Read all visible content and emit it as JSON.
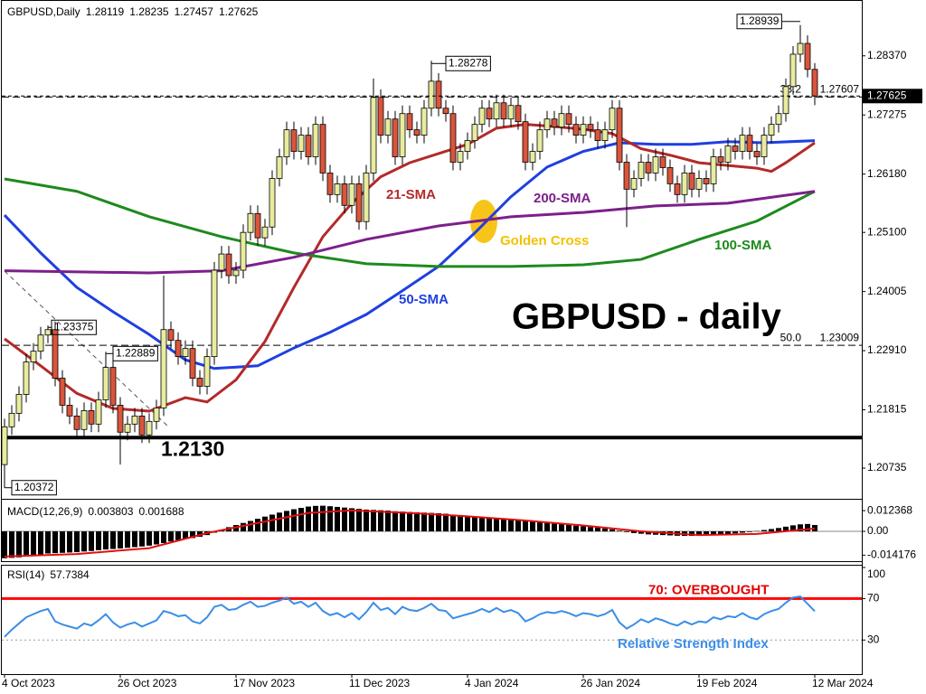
{
  "chart_data": [
    {
      "type": "candlestick",
      "symbol": "GBPUSD,Daily",
      "title": "GBPUSD - daily",
      "categories": [
        "4 Oct 2023",
        null,
        null,
        null,
        null,
        null,
        null,
        null,
        null,
        null,
        null,
        null,
        null,
        null,
        null,
        null,
        "26 Oct 2023",
        null,
        null,
        null,
        null,
        null,
        null,
        null,
        null,
        null,
        null,
        null,
        null,
        null,
        null,
        null,
        "17 Nov 2023",
        null,
        null,
        null,
        null,
        null,
        null,
        null,
        null,
        null,
        null,
        null,
        null,
        null,
        null,
        null,
        "11 Dec 2023",
        null,
        null,
        null,
        null,
        null,
        null,
        null,
        null,
        null,
        null,
        null,
        null,
        null,
        null,
        null,
        "4 Jan 2024",
        null,
        null,
        null,
        null,
        null,
        null,
        null,
        null,
        null,
        null,
        null,
        null,
        null,
        null,
        null,
        "26 Jan 2024",
        null,
        null,
        null,
        null,
        null,
        null,
        null,
        null,
        null,
        null,
        null,
        null,
        null,
        null,
        null,
        "19 Feb 2024",
        null,
        null,
        null,
        null,
        null,
        null,
        null,
        null,
        null,
        null,
        null,
        null,
        null,
        null,
        null,
        "12 Mar 2024"
      ],
      "open": [
        1.208,
        1.215,
        1.2175,
        1.221,
        1.227,
        1.229,
        1.232,
        1.233,
        1.224,
        1.219,
        1.217,
        1.2145,
        1.218,
        1.2155,
        1.22,
        1.226,
        1.219,
        1.214,
        1.2155,
        1.217,
        1.2135,
        1.216,
        1.2185,
        1.233,
        1.231,
        1.228,
        1.2295,
        1.224,
        1.2225,
        1.228,
        1.244,
        1.247,
        1.243,
        1.244,
        1.251,
        1.2545,
        1.25,
        1.252,
        1.261,
        1.265,
        1.27,
        1.266,
        1.269,
        1.265,
        1.271,
        1.262,
        1.258,
        1.26,
        1.256,
        1.26,
        1.253,
        1.262,
        1.276,
        1.269,
        1.272,
        1.265,
        1.273,
        1.27,
        1.269,
        1.274,
        1.279,
        1.274,
        1.273,
        1.264,
        1.266,
        1.268,
        1.271,
        1.274,
        1.272,
        1.275,
        1.272,
        1.2745,
        1.2715,
        1.264,
        1.266,
        1.27,
        1.272,
        1.2705,
        1.273,
        1.271,
        1.269,
        1.271,
        1.27,
        1.268,
        1.27,
        1.274,
        1.264,
        1.259,
        1.261,
        1.264,
        1.262,
        1.265,
        1.263,
        1.26,
        1.258,
        1.262,
        1.259,
        1.261,
        1.26,
        1.265,
        1.264,
        1.267,
        1.266,
        1.269,
        1.266,
        1.265,
        1.269,
        1.271,
        1.273,
        1.278,
        1.284,
        1.286,
        1.28119
      ],
      "high": [
        1.2165,
        1.219,
        1.2225,
        1.2285,
        1.2305,
        1.2335,
        1.23375,
        1.2345,
        1.2255,
        1.2205,
        1.2185,
        1.2195,
        1.2195,
        1.2215,
        1.22889,
        1.2275,
        1.2205,
        1.217,
        1.2185,
        1.2185,
        1.2175,
        1.22,
        1.243,
        1.2345,
        1.2325,
        1.231,
        1.231,
        1.2255,
        1.2295,
        1.2455,
        1.2485,
        1.2485,
        1.2455,
        1.2525,
        1.256,
        1.256,
        1.2535,
        1.2625,
        1.2665,
        1.2715,
        1.2715,
        1.2705,
        1.2705,
        1.2725,
        1.2725,
        1.2635,
        1.2615,
        1.2615,
        1.2615,
        1.2615,
        1.2635,
        1.2795,
        1.2775,
        1.2735,
        1.2735,
        1.2745,
        1.2745,
        1.2715,
        1.2755,
        1.28278,
        1.2805,
        1.2755,
        1.2745,
        1.2675,
        1.2695,
        1.2725,
        1.2755,
        1.2755,
        1.2765,
        1.2765,
        1.276,
        1.276,
        1.273,
        1.2675,
        1.2715,
        1.2735,
        1.2735,
        1.2745,
        1.2745,
        1.2725,
        1.2725,
        1.2725,
        1.2715,
        1.2715,
        1.2755,
        1.2755,
        1.2655,
        1.2625,
        1.2655,
        1.2655,
        1.2665,
        1.2665,
        1.2645,
        1.2615,
        1.2635,
        1.2635,
        1.2625,
        1.2625,
        1.2665,
        1.2665,
        1.2685,
        1.2685,
        1.2705,
        1.2705,
        1.2675,
        1.2705,
        1.2725,
        1.2745,
        1.2795,
        1.2855,
        1.28939,
        1.2875,
        1.28235
      ],
      "low": [
        1.20372,
        1.2135,
        1.216,
        1.2195,
        1.2255,
        1.2275,
        1.2305,
        1.2225,
        1.2175,
        1.2155,
        1.213,
        1.213,
        1.214,
        1.214,
        1.2185,
        1.2175,
        1.208,
        1.2125,
        1.214,
        1.212,
        1.212,
        1.2145,
        1.217,
        1.2295,
        1.2265,
        1.2265,
        1.2225,
        1.221,
        1.221,
        1.2265,
        1.2425,
        1.2415,
        1.2415,
        1.2425,
        1.2495,
        1.2485,
        1.2485,
        1.2505,
        1.2595,
        1.2635,
        1.2645,
        1.2645,
        1.2635,
        1.2635,
        1.2605,
        1.2565,
        1.2565,
        1.2545,
        1.2545,
        1.2515,
        1.2515,
        1.2605,
        1.2675,
        1.2675,
        1.2635,
        1.2635,
        1.2685,
        1.2675,
        1.2675,
        1.2725,
        1.2725,
        1.2715,
        1.2625,
        1.2625,
        1.2645,
        1.2665,
        1.2695,
        1.2705,
        1.2705,
        1.2705,
        1.2705,
        1.27,
        1.2625,
        1.2625,
        1.2645,
        1.2685,
        1.269,
        1.269,
        1.2695,
        1.2675,
        1.2675,
        1.2685,
        1.2665,
        1.2665,
        1.2685,
        1.2625,
        1.252,
        1.2575,
        1.2595,
        1.2605,
        1.2605,
        1.2615,
        1.2585,
        1.2565,
        1.2565,
        1.2575,
        1.2575,
        1.2585,
        1.2585,
        1.2625,
        1.2625,
        1.2645,
        1.2645,
        1.2645,
        1.2635,
        1.2635,
        1.2675,
        1.2695,
        1.2715,
        1.2765,
        1.2825,
        1.2797,
        1.27457
      ],
      "close": [
        1.215,
        1.2175,
        1.221,
        1.227,
        1.229,
        1.232,
        1.233,
        1.224,
        1.219,
        1.217,
        1.2145,
        1.218,
        1.2155,
        1.22,
        1.226,
        1.219,
        1.214,
        1.2155,
        1.217,
        1.2135,
        1.216,
        1.2185,
        1.233,
        1.231,
        1.228,
        1.2295,
        1.224,
        1.2225,
        1.228,
        1.244,
        1.247,
        1.243,
        1.244,
        1.251,
        1.2545,
        1.25,
        1.252,
        1.261,
        1.265,
        1.27,
        1.266,
        1.269,
        1.265,
        1.271,
        1.262,
        1.258,
        1.26,
        1.256,
        1.26,
        1.253,
        1.262,
        1.276,
        1.269,
        1.272,
        1.265,
        1.273,
        1.27,
        1.269,
        1.274,
        1.279,
        1.274,
        1.273,
        1.264,
        1.266,
        1.268,
        1.271,
        1.274,
        1.272,
        1.275,
        1.272,
        1.2745,
        1.2715,
        1.264,
        1.266,
        1.27,
        1.272,
        1.2705,
        1.273,
        1.271,
        1.269,
        1.271,
        1.27,
        1.268,
        1.27,
        1.274,
        1.264,
        1.259,
        1.261,
        1.264,
        1.262,
        1.265,
        1.263,
        1.26,
        1.258,
        1.262,
        1.259,
        1.261,
        1.26,
        1.265,
        1.264,
        1.267,
        1.266,
        1.269,
        1.266,
        1.265,
        1.269,
        1.271,
        1.273,
        1.278,
        1.284,
        1.286,
        1.28119,
        1.27625
      ],
      "up_color": "#e8ec9e",
      "down_color": "#d9553b",
      "series": [
        {
          "name": "50-SMA",
          "color": "#1f3fe0",
          "x": [
            0,
            5,
            10,
            15,
            20,
            25,
            29,
            35,
            40,
            45,
            50,
            55,
            60,
            65,
            70,
            75,
            80,
            85,
            90,
            95,
            100,
            105,
            112
          ],
          "values": [
            1.2542,
            1.2472,
            1.2408,
            1.2363,
            1.2321,
            1.2274,
            1.2258,
            1.2263,
            1.2296,
            1.2325,
            1.2358,
            1.2402,
            1.2447,
            1.2509,
            1.2576,
            1.2631,
            1.266,
            1.2676,
            1.2673,
            1.2673,
            1.2678,
            1.2676,
            1.268
          ]
        },
        {
          "name": "21-SMA",
          "color": "#b32a2a",
          "x": [
            0,
            5,
            10,
            15,
            20,
            25,
            28,
            32,
            36,
            40,
            44,
            48,
            52,
            56,
            60,
            64,
            68,
            72,
            76,
            80,
            84,
            88,
            92,
            96,
            100,
            104,
            106,
            108,
            112
          ],
          "values": [
            1.2313,
            1.2263,
            1.2212,
            1.2184,
            1.2179,
            1.2204,
            1.2196,
            1.2237,
            1.2308,
            1.2408,
            1.2502,
            1.2564,
            1.2613,
            1.2639,
            1.2656,
            1.2673,
            1.2703,
            1.271,
            1.2706,
            1.2701,
            1.2693,
            1.2665,
            1.2653,
            1.2639,
            1.2634,
            1.2629,
            1.2623,
            1.2639,
            1.2676
          ]
        },
        {
          "name": "100-SMA",
          "color": "#1e8a1e",
          "x": [
            0,
            10,
            20,
            30,
            40,
            50,
            60,
            70,
            80,
            88,
            96,
            104,
            112
          ],
          "values": [
            1.2609,
            1.2586,
            1.2539,
            1.2502,
            1.2472,
            1.2452,
            1.2447,
            1.2447,
            1.245,
            1.246,
            1.2497,
            1.2531,
            1.2586
          ]
        },
        {
          "name": "200-SMA",
          "color": "#7d1f8c",
          "x": [
            0,
            20,
            30,
            40,
            50,
            60,
            70,
            80,
            90,
            100,
            112
          ],
          "values": [
            1.2439,
            1.2435,
            1.2439,
            1.2464,
            1.2497,
            1.2522,
            1.2539,
            1.2547,
            1.2559,
            1.2564,
            1.2586
          ]
        }
      ],
      "levels": [
        {
          "value": 1.213,
          "label": "1.2130"
        }
      ],
      "fibonacci": [
        {
          "ratio": 38.2,
          "price": 1.27607
        },
        {
          "ratio": {
            "value": 50,
            "label": "50.0"
          },
          "price": 1.23009
        }
      ],
      "golden_cross": "Golden Cross",
      "ylim": [
        1.202,
        1.2932
      ],
      "yticks": [
        {
          "value": 1.2837,
          "label": "1.28370"
        },
        1.27275,
        {
          "value": 1.2618,
          "label": "1.26180"
        },
        {
          "value": 1.251,
          "label": "1.25100"
        },
        1.24005,
        {
          "value": 1.2291,
          "label": "1.22910"
        },
        1.21815,
        1.20735
      ]
    },
    {
      "type": "bar",
      "label": "MACD(12,26,9)",
      "color": "#000000",
      "signal_color": "#e01010",
      "values": [
        -0.016,
        -0.0158,
        -0.0155,
        -0.015,
        -0.0145,
        -0.0138,
        -0.0132,
        -0.013,
        -0.0128,
        -0.0126,
        -0.0124,
        -0.012,
        -0.0117,
        -0.0112,
        -0.0108,
        -0.0105,
        -0.0102,
        -0.0098,
        -0.0094,
        -0.009,
        -0.0085,
        -0.0078,
        -0.007,
        -0.006,
        -0.0052,
        -0.0045,
        -0.004,
        -0.0032,
        -0.0022,
        -0.0008,
        0.001,
        0.0025,
        0.0038,
        0.005,
        0.0062,
        0.0075,
        0.0088,
        0.01,
        0.0112,
        0.0122,
        0.0132,
        0.014,
        0.0148,
        0.0152,
        0.0153,
        0.015,
        0.0146,
        0.0142,
        0.0138,
        0.0134,
        0.013,
        0.0128,
        0.0126,
        0.0124,
        0.012,
        0.0118,
        0.0116,
        0.0114,
        0.0112,
        0.011,
        0.0108,
        0.0105,
        0.01,
        0.0096,
        0.0092,
        0.0088,
        0.0085,
        0.0082,
        0.008,
        0.0076,
        0.0072,
        0.0068,
        0.0062,
        0.0058,
        0.0054,
        0.005,
        0.0046,
        0.0042,
        0.0038,
        0.0034,
        0.003,
        0.0026,
        0.0022,
        0.0018,
        0.0012,
        0.0004,
        -0.0004,
        -0.001,
        -0.0014,
        -0.0018,
        -0.002,
        -0.0022,
        -0.0024,
        -0.0026,
        -0.0027,
        -0.0027,
        -0.0026,
        -0.0024,
        -0.0022,
        -0.0019,
        -0.0016,
        -0.0012,
        -0.0008,
        -0.0004,
        0.0002,
        0.0008,
        0.0014,
        0.002,
        0.0028,
        0.0036,
        0.0042,
        0.0044,
        0.003803
      ],
      "signal_x": [
        0,
        10,
        20,
        28,
        35,
        42,
        48,
        56,
        64,
        72,
        80,
        88,
        96,
        104,
        112
      ],
      "signal": [
        -0.015,
        -0.0135,
        -0.01,
        -0.001,
        0.005,
        0.011,
        0.0125,
        0.011,
        0.009,
        0.0065,
        0.0035,
        0.0,
        -0.0022,
        -0.0015,
        0.001688
      ],
      "ylim": [
        -0.0183,
        0.0178
      ],
      "yticks": [
        0.012368,
        {
          "value": 0,
          "label": "0.00"
        },
        -0.014176
      ]
    },
    {
      "type": "line",
      "label": "RSI(14)",
      "color": "#3a8ee6",
      "annotation": "Relative Strength Index",
      "values": [
        33,
        40,
        46,
        52,
        55,
        58,
        60,
        48,
        45,
        43,
        41,
        46,
        44,
        49,
        55,
        47,
        42,
        45,
        47,
        43,
        46,
        49,
        58,
        56,
        53,
        54,
        48,
        46,
        52,
        62,
        64,
        59,
        60,
        64,
        67,
        62,
        63,
        66,
        68,
        71,
        65,
        67,
        62,
        66,
        58,
        54,
        56,
        52,
        56,
        50,
        57,
        66,
        59,
        61,
        55,
        62,
        59,
        58,
        61,
        65,
        59,
        58,
        51,
        53,
        55,
        57,
        60,
        57,
        61,
        57,
        59,
        56,
        48,
        51,
        55,
        57,
        56,
        58,
        56,
        53,
        56,
        55,
        53,
        55,
        59,
        47,
        41,
        45,
        50,
        47,
        51,
        49,
        46,
        44,
        48,
        45,
        48,
        47,
        52,
        50,
        53,
        52,
        56,
        52,
        50,
        55,
        58,
        60,
        66,
        71,
        72,
        65,
        57.7384
      ],
      "overbought": {
        "value": 70,
        "label": "70: OVERBOUGHT"
      },
      "oversold": 30,
      "ylim": [
        -2,
        100
      ],
      "yticks": [
        100,
        70,
        30
      ]
    }
  ]
}
